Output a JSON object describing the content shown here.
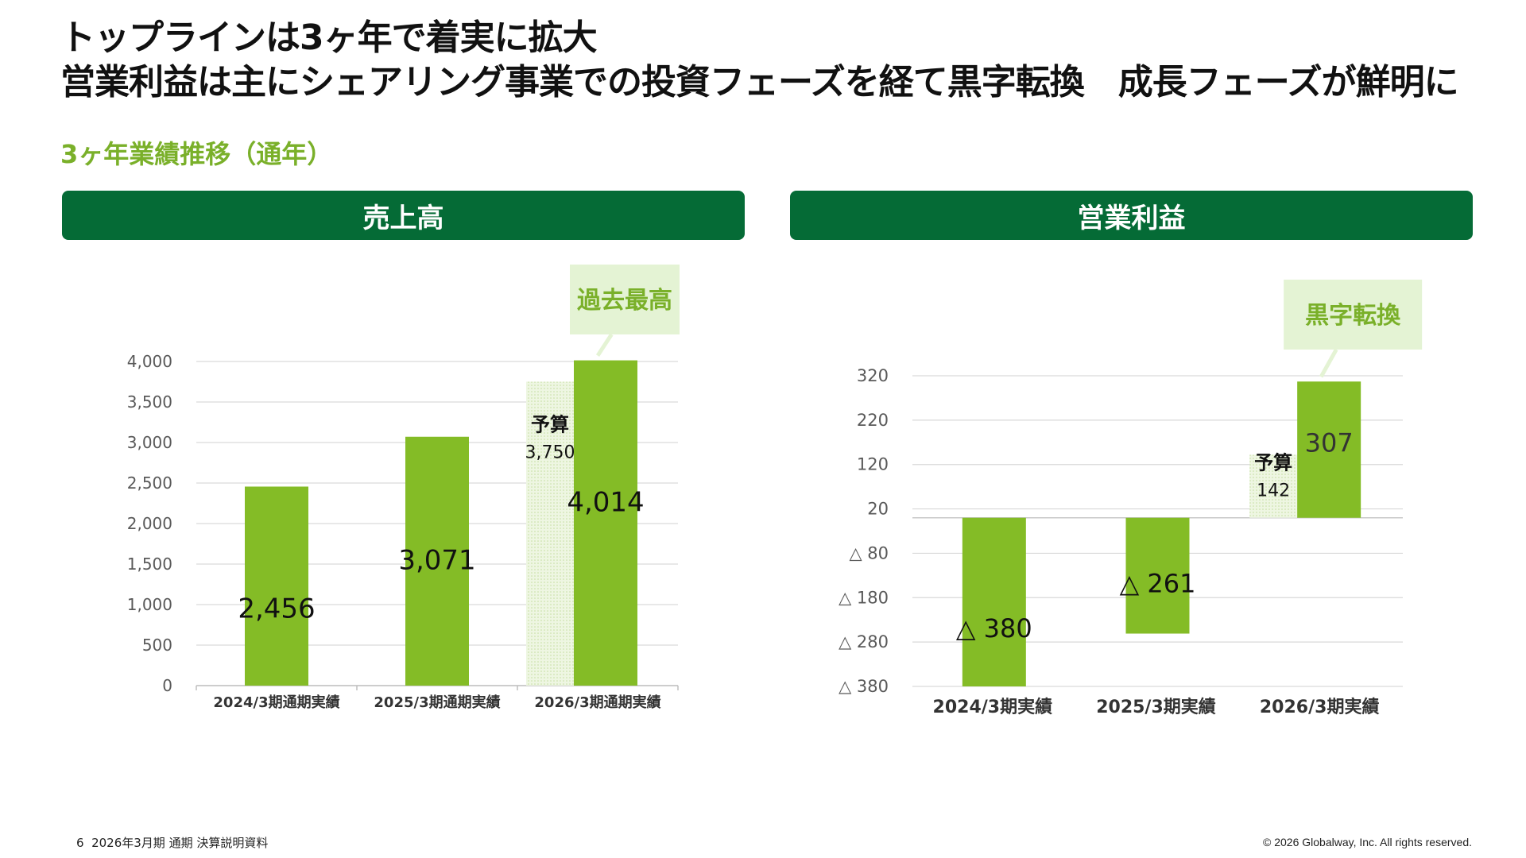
{
  "colors": {
    "brand_green": "#056b36",
    "bar_green": "#84bc26",
    "accent_text_green": "#7ab02a",
    "callout_bg": "#e4f3d4",
    "budget_fill": "#eef6e2",
    "grid": "#d9d9d9",
    "tick_text": "#595959"
  },
  "title_line1": "トップラインは3ヶ年で着実に拡大",
  "title_line2": "営業利益は主にシェアリング事業での投資フェーズを経て黒字転換　成長フェーズが鮮明に",
  "subtitle": "3ヶ年業績推移（通年）",
  "footer": {
    "page_number": "6",
    "document_name": "2026年3月期 通期 決算説明資料",
    "copyright": "© 2026 Globalway, Inc. All rights reserved."
  },
  "chart_data": [
    {
      "type": "bar",
      "title": "売上高",
      "categories": [
        "2024/3期通期実績",
        "2025/3期通期実績",
        "2026/3期通期実績"
      ],
      "values": [
        2456,
        3071,
        4014
      ],
      "value_labels": [
        "2,456",
        "3,071",
        "4,014"
      ],
      "ylim": [
        0,
        4000
      ],
      "yticks": [
        0,
        500,
        1000,
        1500,
        2000,
        2500,
        3000,
        3500,
        4000
      ],
      "ytick_labels": [
        "0",
        "500",
        "1,000",
        "1,500",
        "2,000",
        "2,500",
        "3,000",
        "3,500",
        "4,000"
      ],
      "grid": true,
      "budget": {
        "category_index": 2,
        "label": "予算",
        "value": 3750,
        "value_label": "3,750"
      },
      "callout": {
        "category_index": 2,
        "text": "過去最高"
      }
    },
    {
      "type": "bar",
      "title": "営業利益",
      "categories": [
        "2024/3期実績",
        "2025/3期実績",
        "2026/3期実績"
      ],
      "values": [
        -380,
        -261,
        307
      ],
      "value_labels": [
        "△ 380",
        "△ 261",
        "307"
      ],
      "ylim": [
        -380,
        320
      ],
      "yticks": [
        -380,
        -280,
        -180,
        -80,
        20,
        120,
        220,
        320
      ],
      "ytick_labels": [
        "△ 380",
        "△ 280",
        "△ 180",
        "△ 80",
        "20",
        "120",
        "220",
        "320"
      ],
      "grid": true,
      "budget": {
        "category_index": 2,
        "label": "予算",
        "value": 142,
        "value_label": "142"
      },
      "callout": {
        "category_index": 2,
        "text": "黒字転換"
      }
    }
  ]
}
